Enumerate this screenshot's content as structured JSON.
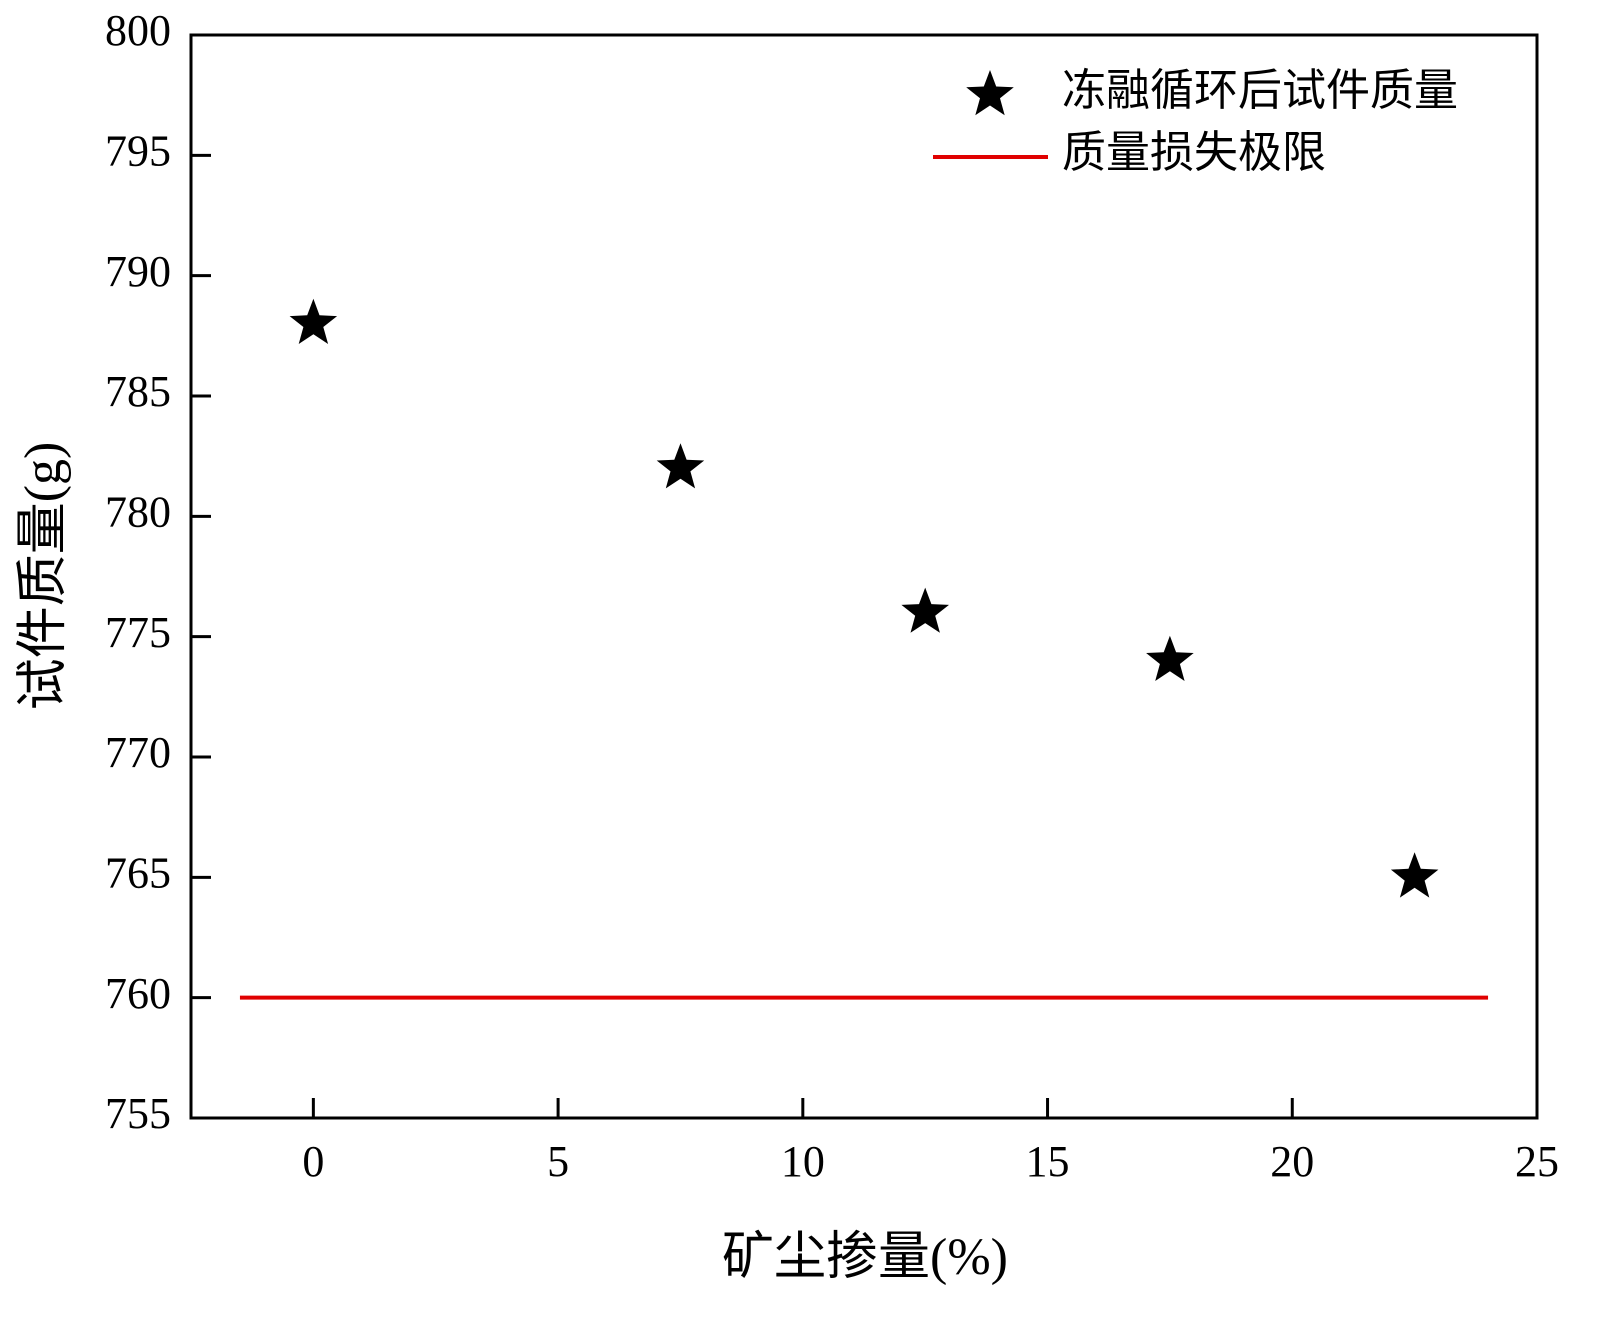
{
  "chart_data": {
    "type": "scatter",
    "x_label": "矿尘掺量(%)",
    "y_label": "试件质量(g)",
    "xlim": [
      -2.5,
      25
    ],
    "xticks": [
      0,
      5,
      10,
      15,
      20,
      25
    ],
    "ylim": [
      755,
      800
    ],
    "yticks": [
      755,
      760,
      765,
      770,
      775,
      780,
      785,
      790,
      795,
      800
    ],
    "legend": "upper right",
    "series": [
      {
        "name": "冻融循环后试件质量",
        "color": "#000000",
        "type": "scatter",
        "marker": "star",
        "x": [
          0,
          7.5,
          12.5,
          17.5,
          22.5
        ],
        "values": [
          788,
          782,
          776,
          774,
          765
        ]
      },
      {
        "name": "质量损失极限",
        "color": "#e00000",
        "type": "line",
        "x": [
          -1.5,
          24
        ],
        "values": [
          760,
          760
        ]
      }
    ]
  }
}
